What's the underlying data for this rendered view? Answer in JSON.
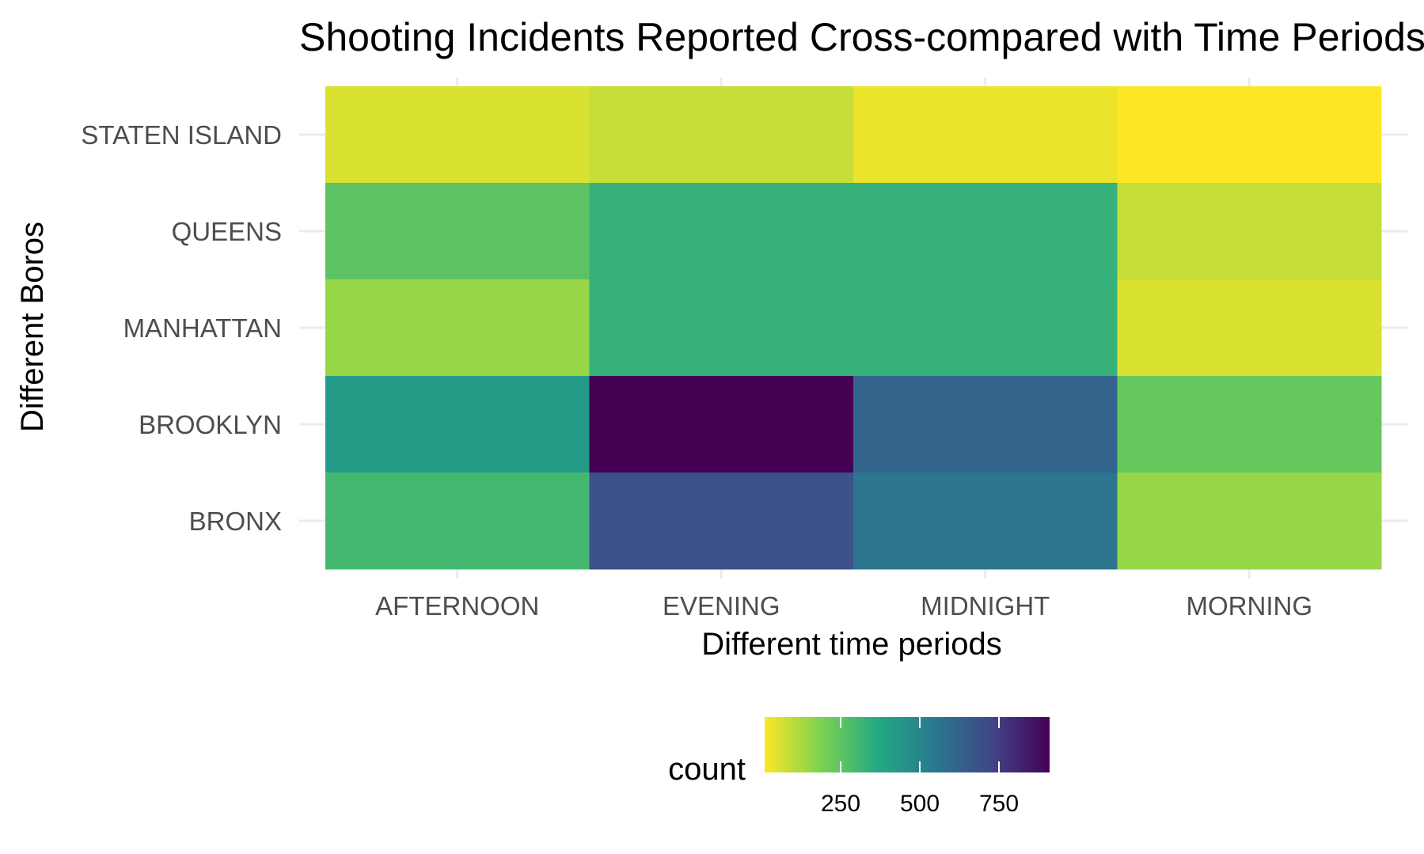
{
  "chart_data": {
    "type": "heatmap",
    "title": "Shooting Incidents Reported Cross-compared with Time Periods",
    "xlabel": "Different time periods",
    "ylabel": "Different Boros",
    "x_categories": [
      "AFTERNOON",
      "EVENING",
      "MIDNIGHT",
      "MORNING"
    ],
    "y_categories": [
      "STATEN ISLAND",
      "QUEENS",
      "MANHATTAN",
      "BROOKLYN",
      "BRONX"
    ],
    "values": [
      [
        60,
        85,
        35,
        10
      ],
      [
        250,
        330,
        330,
        85
      ],
      [
        150,
        330,
        330,
        60
      ],
      [
        420,
        910,
        620,
        230
      ],
      [
        300,
        690,
        560,
        150
      ]
    ],
    "color_scale": {
      "name": "viridis",
      "reversed": true,
      "min": 10,
      "max": 910,
      "stops": [
        "#fde725",
        "#7ad151",
        "#22a884",
        "#2a788e",
        "#414487",
        "#440154"
      ]
    },
    "legend": {
      "title": "count",
      "position": "bottom",
      "ticks": [
        250,
        500,
        750
      ],
      "tick_labels": [
        "250",
        "500",
        "750"
      ]
    },
    "grid": true
  }
}
